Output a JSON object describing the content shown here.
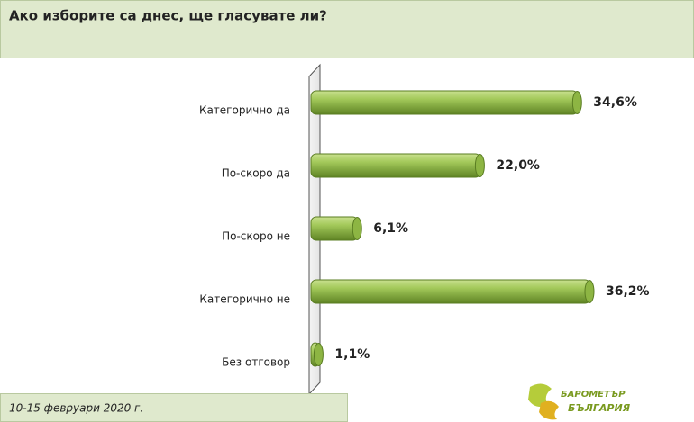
{
  "chart_data": {
    "type": "bar",
    "orientation": "horizontal",
    "title": "Ако изборите са днес, ще гласувате ли?",
    "categories": [
      "Категорично да",
      "По-скоро да",
      "По-скоро не",
      "Категорично не",
      "Без отговор"
    ],
    "values": [
      34.6,
      22.0,
      6.1,
      36.2,
      1.1
    ],
    "value_labels": [
      "34,6%",
      "22,0%",
      "6,1%",
      "36,2%",
      "1,1%"
    ],
    "color": "#8db543",
    "footnote": "10-15 февруари 2020 г.",
    "logo": [
      "БАРОМЕТЪР",
      "БЪЛГАРИЯ"
    ]
  }
}
